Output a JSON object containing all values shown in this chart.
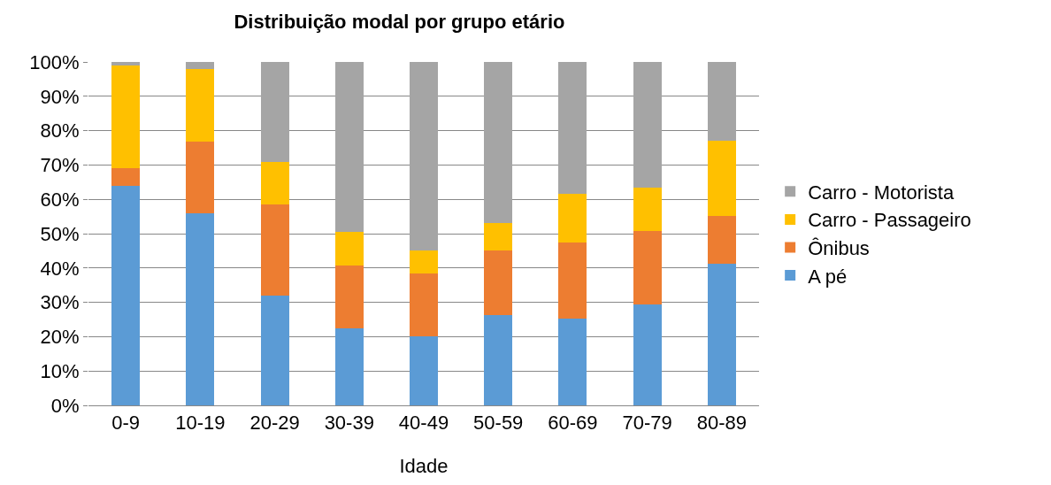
{
  "chart_data": {
    "type": "bar",
    "stacked": true,
    "title": "Distribuição modal por grupo etário",
    "xlabel": "Idade",
    "categories": [
      "0-9",
      "10-19",
      "20-29",
      "30-39",
      "40-49",
      "50-59",
      "60-69",
      "70-79",
      "80-89"
    ],
    "series": [
      {
        "name": "A pé",
        "color": "#5b9bd5",
        "values": [
          64,
          56,
          32,
          22.3,
          20,
          26.2,
          25.2,
          29.3,
          41.3
        ]
      },
      {
        "name": "Ônibus",
        "color": "#ed7d31",
        "values": [
          5,
          20.7,
          26.5,
          18.5,
          18.5,
          19,
          22.3,
          21.5,
          13.9
        ]
      },
      {
        "name": "Carro - Passageiro",
        "color": "#ffc000",
        "values": [
          30,
          21.3,
          12.5,
          9.7,
          6.5,
          7.8,
          14,
          12.7,
          21.8
        ]
      },
      {
        "name": "Carro - Motorista",
        "color": "#a5a5a5",
        "values": [
          1,
          2,
          29,
          49.5,
          55,
          47,
          38.5,
          36.5,
          23
        ]
      }
    ],
    "ylim": [
      0,
      100
    ],
    "yticks": [
      {
        "value": 0,
        "label": "0%"
      },
      {
        "value": 10,
        "label": "10%"
      },
      {
        "value": 20,
        "label": "20%"
      },
      {
        "value": 30,
        "label": "30%"
      },
      {
        "value": 40,
        "label": "40%"
      },
      {
        "value": 50,
        "label": "50%"
      },
      {
        "value": 60,
        "label": "60%"
      },
      {
        "value": 70,
        "label": "70%"
      },
      {
        "value": 80,
        "label": "80%"
      },
      {
        "value": 90,
        "label": "90%"
      },
      {
        "value": 100,
        "label": "100%"
      }
    ],
    "grid": "y",
    "legend": "right"
  }
}
